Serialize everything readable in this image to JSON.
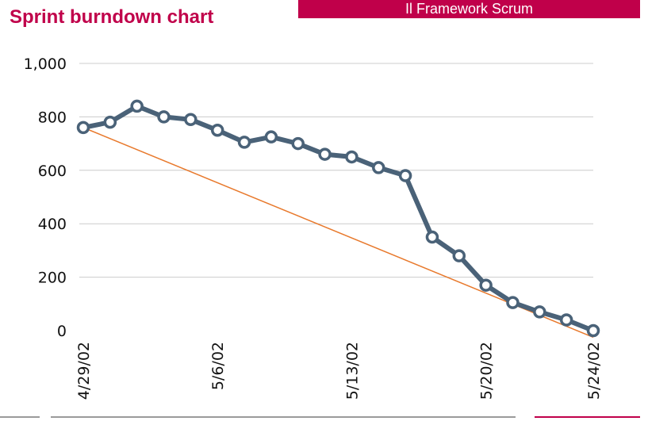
{
  "header": {
    "title": "Sprint burndown chart",
    "section_label": "Il Framework Scrum"
  },
  "colors": {
    "brand": "#c0004a",
    "series": "#4a6278",
    "ideal_line": "#e8792c",
    "grid": "#cccccc",
    "footer_line": "#9a9a9a"
  },
  "chart_data": {
    "type": "line",
    "title": "",
    "xlabel": "",
    "ylabel": "",
    "ylim": [
      0,
      1000
    ],
    "yticks": [
      0,
      200,
      400,
      600,
      800,
      1000
    ],
    "ytick_labels": [
      "0",
      "200",
      "400",
      "600",
      "800",
      "1,000"
    ],
    "x_dates": [
      "4/29/02",
      "4/30/02",
      "5/1/02",
      "5/2/02",
      "5/3/02",
      "5/6/02",
      "5/7/02",
      "5/8/02",
      "5/9/02",
      "5/10/02",
      "5/13/02",
      "5/14/02",
      "5/15/02",
      "5/16/02",
      "5/17/02",
      "5/20/02",
      "5/21/02",
      "5/22/02",
      "5/23/02",
      "5/24/02"
    ],
    "xtick_labels": [
      "4/29/02",
      "5/6/02",
      "5/13/02",
      "5/20/02",
      "5/24/02"
    ],
    "grid": true,
    "legend": "none",
    "series": [
      {
        "values": [
          760,
          780,
          840,
          800,
          790,
          750,
          705,
          725,
          700,
          660,
          650,
          610,
          580,
          350,
          280,
          170,
          105,
          70,
          40,
          0
        ]
      }
    ],
    "ideal_line": {
      "from": [
        "4/29/02",
        760
      ],
      "to": [
        "5/24/02",
        -25
      ]
    }
  }
}
